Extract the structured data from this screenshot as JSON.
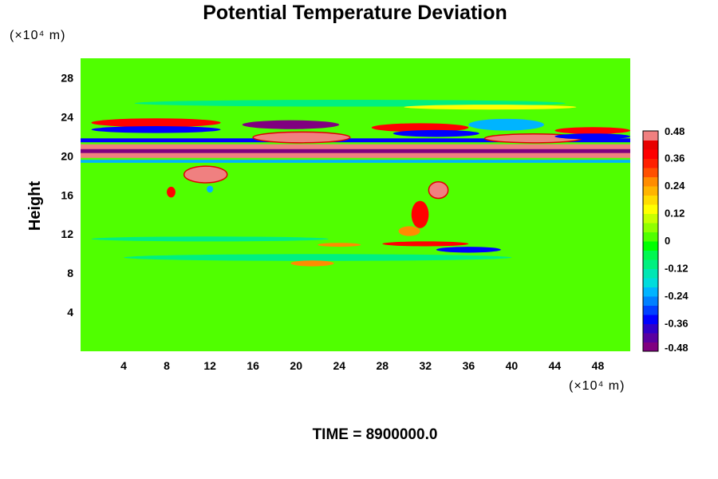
{
  "chart_data": {
    "type": "heatmap",
    "title": "Potential Temperature Deviation",
    "xlabel": "",
    "ylabel": "Height",
    "x_unit": "(×10⁴ m)",
    "y_unit": "(×10⁴ m)",
    "xlim": [
      0,
      51
    ],
    "ylim": [
      0,
      30
    ],
    "x_ticks": [
      {
        "value": 4,
        "label": "4"
      },
      {
        "value": 8,
        "label": "8"
      },
      {
        "value": 12,
        "label": "12"
      },
      {
        "value": 16,
        "label": "16"
      },
      {
        "value": 20,
        "label": "20"
      },
      {
        "value": 24,
        "label": "24"
      },
      {
        "value": 28,
        "label": "28"
      },
      {
        "value": 32,
        "label": "32"
      },
      {
        "value": 36,
        "label": "36"
      },
      {
        "value": 40,
        "label": "40"
      },
      {
        "value": 44,
        "label": "44"
      },
      {
        "value": 48,
        "label": "48"
      }
    ],
    "y_ticks": [
      {
        "value": 4,
        "label": "4"
      },
      {
        "value": 8,
        "label": "8"
      },
      {
        "value": 12,
        "label": "12"
      },
      {
        "value": 16,
        "label": "16"
      },
      {
        "value": 20,
        "label": "20"
      },
      {
        "value": 24,
        "label": "24"
      },
      {
        "value": 28,
        "label": "28"
      }
    ],
    "colorbar": {
      "min": -0.48,
      "max": 0.48,
      "ticks": [
        {
          "value": 0.48,
          "label": "0.48"
        },
        {
          "value": 0.36,
          "label": "0.36"
        },
        {
          "value": 0.24,
          "label": "0.24"
        },
        {
          "value": 0.12,
          "label": "0.12"
        },
        {
          "value": 0,
          "label": "0"
        },
        {
          "value": -0.12,
          "label": "-0.12"
        },
        {
          "value": -0.24,
          "label": "-0.24"
        },
        {
          "value": -0.36,
          "label": "-0.36"
        },
        {
          "value": -0.48,
          "label": "-0.48"
        }
      ],
      "colors": [
        "#800080",
        "#5a00a0",
        "#3000c8",
        "#0000ff",
        "#0040ff",
        "#0080ff",
        "#00b4ff",
        "#00dcdc",
        "#00e6b4",
        "#00f080",
        "#00f850",
        "#00ff00",
        "#50ff00",
        "#90ff00",
        "#c8ff00",
        "#ffff00",
        "#ffdc00",
        "#ffb400",
        "#ff8c00",
        "#ff5000",
        "#ff2000",
        "#ff0000",
        "#e80000",
        "#f08080"
      ]
    },
    "background_value": 0,
    "features": [
      {
        "kind": "band",
        "x0": 0,
        "x1": 51,
        "y0": 19.8,
        "y1": 21.2,
        "value": 0.48
      },
      {
        "kind": "band",
        "x0": 0,
        "x1": 51,
        "y0": 20.3,
        "y1": 20.7,
        "value": -0.48
      },
      {
        "kind": "band",
        "x0": 0,
        "x1": 51,
        "y0": 21.4,
        "y1": 21.8,
        "value": -0.36
      },
      {
        "kind": "band",
        "x0": 0,
        "x1": 51,
        "y0": 19.3,
        "y1": 19.6,
        "value": -0.24
      },
      {
        "kind": "blob",
        "cx": 7,
        "cy": 23.4,
        "rx": 6.0,
        "ry": 0.45,
        "value": 0.36
      },
      {
        "kind": "blob",
        "cx": 7,
        "cy": 22.7,
        "rx": 6.0,
        "ry": 0.35,
        "value": -0.36
      },
      {
        "kind": "blob",
        "cx": 19.5,
        "cy": 23.2,
        "rx": 4.5,
        "ry": 0.45,
        "value": -0.48
      },
      {
        "kind": "blob",
        "cx": 20.5,
        "cy": 21.9,
        "rx": 4.5,
        "ry": 0.55,
        "value": 0.48
      },
      {
        "kind": "blob",
        "cx": 31.5,
        "cy": 22.9,
        "rx": 4.5,
        "ry": 0.45,
        "value": 0.36
      },
      {
        "kind": "blob",
        "cx": 33.0,
        "cy": 22.3,
        "rx": 4.0,
        "ry": 0.35,
        "value": -0.36
      },
      {
        "kind": "blob",
        "cx": 39.5,
        "cy": 23.2,
        "rx": 3.5,
        "ry": 0.6,
        "value": -0.24
      },
      {
        "kind": "blob",
        "cx": 42.0,
        "cy": 21.8,
        "rx": 4.5,
        "ry": 0.45,
        "value": 0.48
      },
      {
        "kind": "blob",
        "cx": 47.5,
        "cy": 22.6,
        "rx": 3.5,
        "ry": 0.35,
        "value": 0.36
      },
      {
        "kind": "blob",
        "cx": 47.5,
        "cy": 22.0,
        "rx": 3.5,
        "ry": 0.3,
        "value": -0.36
      },
      {
        "kind": "blob",
        "cx": 11.6,
        "cy": 18.1,
        "rx": 2.0,
        "ry": 0.85,
        "value": 0.48
      },
      {
        "kind": "blob",
        "cx": 8.4,
        "cy": 16.3,
        "rx": 0.4,
        "ry": 0.55,
        "value": 0.36
      },
      {
        "kind": "blob",
        "cx": 12.0,
        "cy": 16.6,
        "rx": 0.3,
        "ry": 0.35,
        "value": -0.24
      },
      {
        "kind": "blob",
        "cx": 33.2,
        "cy": 16.5,
        "rx": 0.9,
        "ry": 0.85,
        "value": 0.48
      },
      {
        "kind": "blob",
        "cx": 31.5,
        "cy": 14.0,
        "rx": 0.8,
        "ry": 1.4,
        "value": 0.36
      },
      {
        "kind": "blob",
        "cx": 30.5,
        "cy": 12.3,
        "rx": 1.0,
        "ry": 0.5,
        "value": 0.24
      },
      {
        "kind": "blob",
        "cx": 32.0,
        "cy": 11.0,
        "rx": 4.0,
        "ry": 0.25,
        "value": 0.36
      },
      {
        "kind": "blob",
        "cx": 36.0,
        "cy": 10.4,
        "rx": 3.0,
        "ry": 0.3,
        "value": -0.36
      },
      {
        "kind": "blob",
        "cx": 24.0,
        "cy": 10.9,
        "rx": 2.0,
        "ry": 0.2,
        "value": 0.24
      },
      {
        "kind": "blob",
        "cx": 22.0,
        "cy": 9.6,
        "rx": 18.0,
        "ry": 0.35,
        "value": -0.12
      },
      {
        "kind": "blob",
        "cx": 21.5,
        "cy": 9.0,
        "rx": 2.0,
        "ry": 0.3,
        "value": 0.24
      },
      {
        "kind": "blob",
        "cx": 12.0,
        "cy": 11.5,
        "rx": 11.0,
        "ry": 0.25,
        "value": -0.12
      },
      {
        "kind": "blob",
        "cx": 25.0,
        "cy": 25.4,
        "rx": 20.0,
        "ry": 0.35,
        "value": -0.12
      },
      {
        "kind": "blob",
        "cx": 38.0,
        "cy": 25.0,
        "rx": 8.0,
        "ry": 0.25,
        "value": 0.12
      }
    ]
  },
  "footer": {
    "time_text": "TIME = 8900000.0"
  }
}
